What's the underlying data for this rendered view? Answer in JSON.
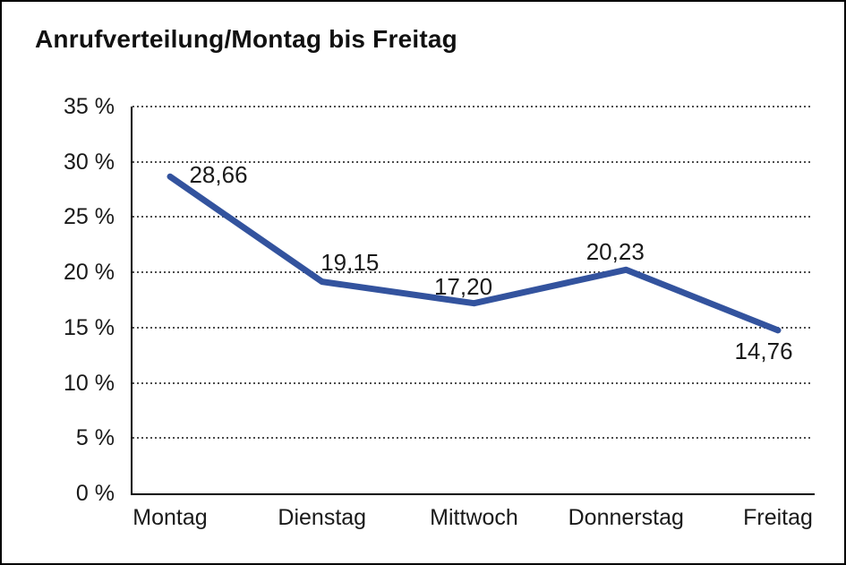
{
  "chart": {
    "title": "Anrufverteilung/Montag bis Freitag"
  },
  "chart_data": {
    "type": "line",
    "title": "Anrufverteilung/Montag bis Freitag",
    "categories": [
      "Montag",
      "Dienstag",
      "Mittwoch",
      "Donnerstag",
      "Freitag"
    ],
    "series": [
      {
        "name": "Anrufverteilung",
        "values": [
          28.66,
          19.15,
          17.2,
          20.23,
          14.76
        ],
        "point_labels": [
          "28,66",
          "19,15",
          "17,20",
          "20,23",
          "14,76"
        ]
      }
    ],
    "xlabel": "",
    "ylabel": "",
    "ylim": [
      0,
      35
    ],
    "y_ticks": [
      {
        "value": 0,
        "label": "0 %"
      },
      {
        "value": 5,
        "label": "5 %"
      },
      {
        "value": 10,
        "label": "10 %"
      },
      {
        "value": 15,
        "label": "15 %"
      },
      {
        "value": 20,
        "label": "20 %"
      },
      {
        "value": 25,
        "label": "25 %"
      },
      {
        "value": 30,
        "label": "30 %"
      },
      {
        "value": 35,
        "label": "35 %"
      }
    ],
    "grid": "horizontal-dotted",
    "legend": "none",
    "line_color": "#33539E",
    "grid_color": "#4d4d4d",
    "axis_color": "#000000",
    "text_color": "#1a1a1a",
    "background": "#ffffff"
  }
}
